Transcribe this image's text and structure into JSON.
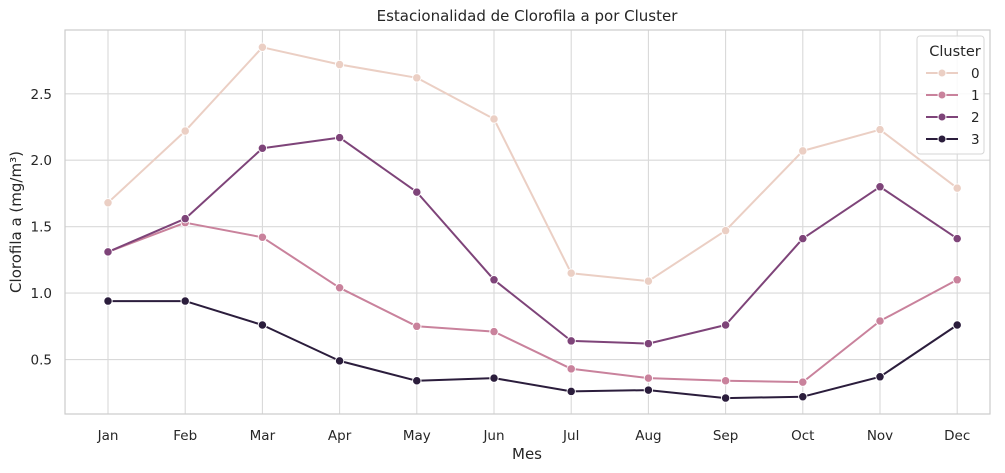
{
  "chart_data": {
    "type": "line",
    "title": "Estacionalidad de Clorofila a por Cluster",
    "xlabel": "Mes",
    "ylabel": "Clorofila a (mg/m³)",
    "categories": [
      "Jan",
      "Feb",
      "Mar",
      "Apr",
      "May",
      "Jun",
      "Jul",
      "Aug",
      "Sep",
      "Oct",
      "Nov",
      "Dec"
    ],
    "ylim": [
      0.09,
      2.98
    ],
    "yticks": [
      0.5,
      1.0,
      1.5,
      2.0,
      2.5
    ],
    "ytick_labels": [
      "0.5",
      "1.0",
      "1.5",
      "2.0",
      "2.5"
    ],
    "grid": true,
    "legend": {
      "title": "Cluster",
      "placement": "top-right"
    },
    "series": [
      {
        "name": "0",
        "color": "#ebcfc4",
        "values": [
          1.68,
          2.22,
          2.85,
          2.72,
          2.62,
          2.31,
          1.15,
          1.09,
          1.47,
          2.07,
          2.23,
          1.79
        ]
      },
      {
        "name": "1",
        "color": "#c9829c",
        "values": [
          1.31,
          1.53,
          1.42,
          1.04,
          0.75,
          0.71,
          0.43,
          0.36,
          0.34,
          0.33,
          0.79,
          1.1
        ]
      },
      {
        "name": "2",
        "color": "#7e4479",
        "values": [
          1.31,
          1.56,
          2.09,
          2.17,
          1.76,
          1.1,
          0.64,
          0.62,
          0.76,
          1.41,
          1.8,
          1.41
        ]
      },
      {
        "name": "3",
        "color": "#2b1d3c",
        "values": [
          0.94,
          0.94,
          0.76,
          0.49,
          0.34,
          0.36,
          0.26,
          0.27,
          0.21,
          0.22,
          0.37,
          0.76
        ]
      }
    ]
  }
}
